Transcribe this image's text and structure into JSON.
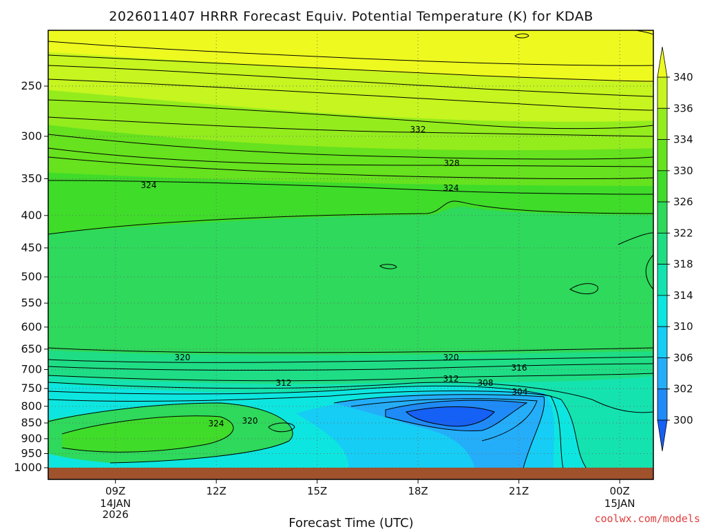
{
  "title": "2026011407 HRRR Forecast Equiv. Potential Temperature (K) for KDAB",
  "credit": "coolwx.com/models",
  "colors": {
    "ground": "#a0522d",
    "bands": [
      "#1560f5",
      "#1e8bf8",
      "#24aefa",
      "#16cdf5",
      "#0de6e0",
      "#14e3b0",
      "#1fdd85",
      "#2ed95b",
      "#3fdc2a",
      "#66e21e",
      "#94ec1d",
      "#c6f51f",
      "#eefa1f"
    ]
  },
  "chart_data": {
    "type": "heatmap",
    "title": "2026011407 HRRR Forecast Equiv. Potential Temperature (K) for KDAB",
    "xlabel": "Forecast Time (UTC)",
    "ylabel": "",
    "x_ticks": [
      {
        "label": "09Z",
        "sub": [
          "14JAN",
          "2026"
        ]
      },
      {
        "label": "12Z",
        "sub": []
      },
      {
        "label": "15Z",
        "sub": []
      },
      {
        "label": "18Z",
        "sub": []
      },
      {
        "label": "21Z",
        "sub": []
      },
      {
        "label": "00Z",
        "sub": [
          "15JAN"
        ]
      }
    ],
    "y_ticks": [
      "250",
      "300",
      "350",
      "400",
      "450",
      "500",
      "550",
      "600",
      "650",
      "700",
      "750",
      "800",
      "850",
      "900",
      "950",
      "1000"
    ],
    "colorbar": {
      "labels": [
        "340",
        "336",
        "334",
        "330",
        "326",
        "322",
        "318",
        "314",
        "310",
        "306",
        "302",
        "300"
      ],
      "levels": [
        300,
        302,
        306,
        310,
        314,
        318,
        322,
        326,
        330,
        334,
        336,
        340
      ]
    },
    "contour_labels": [
      "332",
      "328",
      "324",
      "324",
      "320",
      "320",
      "316",
      "312",
      "312",
      "308",
      "304",
      "324",
      "320"
    ],
    "pressure_range_hPa": [
      200,
      1000
    ],
    "time_range": [
      "14JAN 07Z",
      "15JAN 01Z"
    ]
  }
}
